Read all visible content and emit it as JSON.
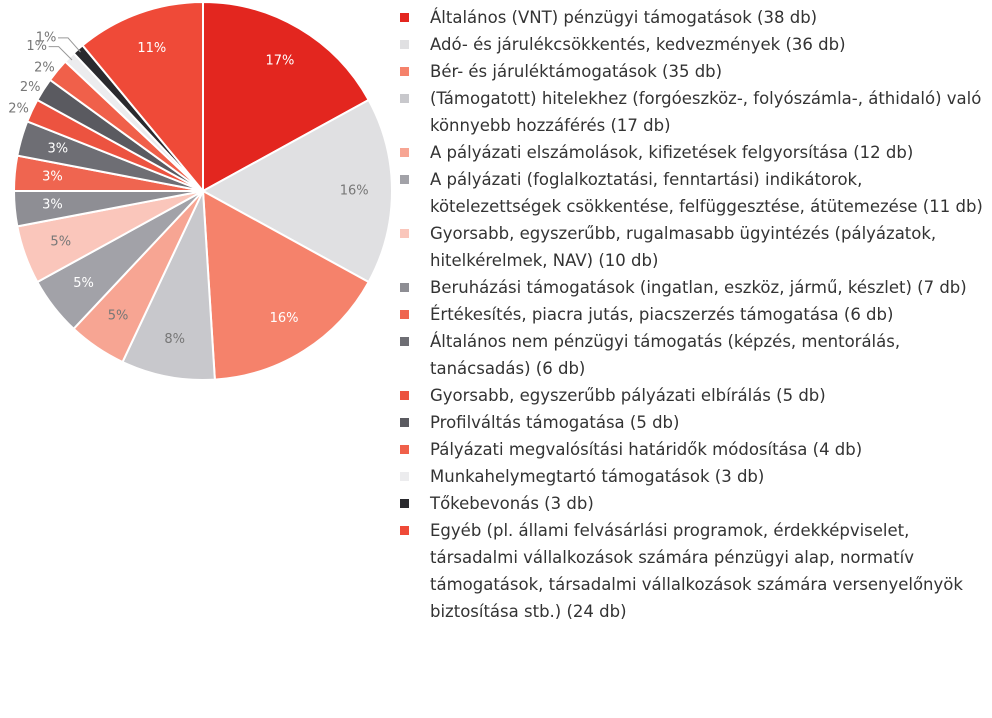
{
  "chart_data": {
    "type": "pie",
    "categories": [
      "Általános (VNT) pénzügyi támogatások (38 db)",
      "Adó- és járulékcsökkentés, kedvezmények (36 db)",
      "Bér- és járuléktámogatások (35 db)",
      "(Támogatott) hitelekhez (forgóeszköz-, folyószámla-, áthidaló) való könnyebb hozzáférés (17 db)",
      "A pályázati elszámolások, kifizetések felgyorsítása (12 db)",
      "A pályázati (foglalkoztatási, fenntartási) indikátorok, kötelezettségek csökkentése, felfüggesztése, átütemezése (11 db)",
      "Gyorsabb, egyszerűbb, rugalmasabb ügyintézés (pályázatok, hitelkérelmek, NAV) (10 db)",
      "Beruházási támogatások (ingatlan, eszköz, jármű, készlet) (7 db)",
      "Értékesítés, piacra jutás, piacszerzés támogatása (6 db)",
      "Általános nem pénzügyi támogatás (képzés, mentorálás, tanácsadás) (6 db)",
      "Gyorsabb, egyszerűbb pályázati elbírálás (5 db)",
      "Profilváltás támogatása (5 db)",
      "Pályázati megvalósítási határidők módosítása (4 db)",
      "Munkahelymegtartó támogatások (3 db)",
      "Tőkebevonás (3 db)",
      "Egyéb (pl. állami felvásárlási programok, érdekképviselet, társadalmi vállalkozások számára pénzügyi alap, normatív támogatások, társadalmi vállalkozások számára versenyelőnyök biztosítása stb.) (24 db)"
    ],
    "values": [
      17,
      16,
      16,
      8,
      5,
      5,
      5,
      3,
      3,
      3,
      2,
      2,
      2,
      1,
      1,
      11
    ],
    "value_labels": [
      "17%",
      "16%",
      "16%",
      "8%",
      "5%",
      "5%",
      "5%",
      "3%",
      "3%",
      "3%",
      "2%",
      "2%",
      "2%",
      "1%",
      "1%",
      "11%"
    ],
    "colors": [
      "#e3261f",
      "#e0e0e2",
      "#f5826b",
      "#c8c8cc",
      "#f7a593",
      "#a2a2a8",
      "#fac6bb",
      "#8e8e94",
      "#ef6550",
      "#6e6e74",
      "#ec5340",
      "#5a5a60",
      "#f0604a",
      "#ececee",
      "#2a2a2e",
      "#ef4a38"
    ]
  }
}
